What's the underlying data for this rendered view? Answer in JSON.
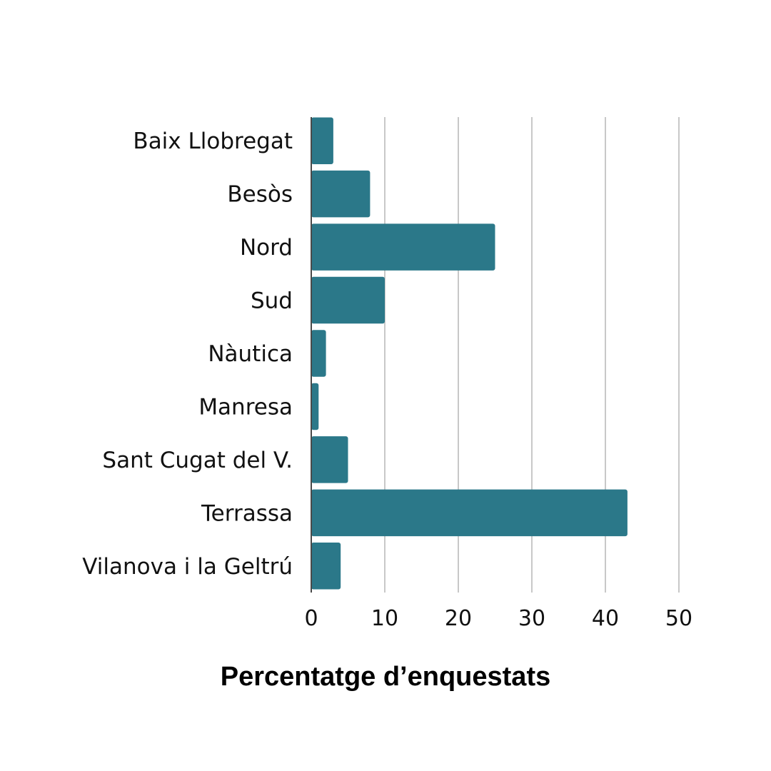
{
  "chart_data": {
    "type": "bar",
    "orientation": "horizontal",
    "categories": [
      "Baix Llobregat",
      "Besòs",
      "Nord",
      "Sud",
      "Nàutica",
      "Manresa",
      "Sant Cugat del V.",
      "Terrassa",
      "Vilanova i la Geltrú"
    ],
    "values": [
      3,
      8,
      25,
      10,
      2,
      1,
      5,
      43,
      4
    ],
    "xlabel": "Percentatge d’enquestats",
    "ylabel": "",
    "xlim": [
      0,
      50
    ],
    "xticks": [
      "0",
      "10",
      "20",
      "30",
      "40",
      "50"
    ],
    "grid": "vertical",
    "bar_color": "#2b7889",
    "grid_color": "#c8c8c8"
  }
}
